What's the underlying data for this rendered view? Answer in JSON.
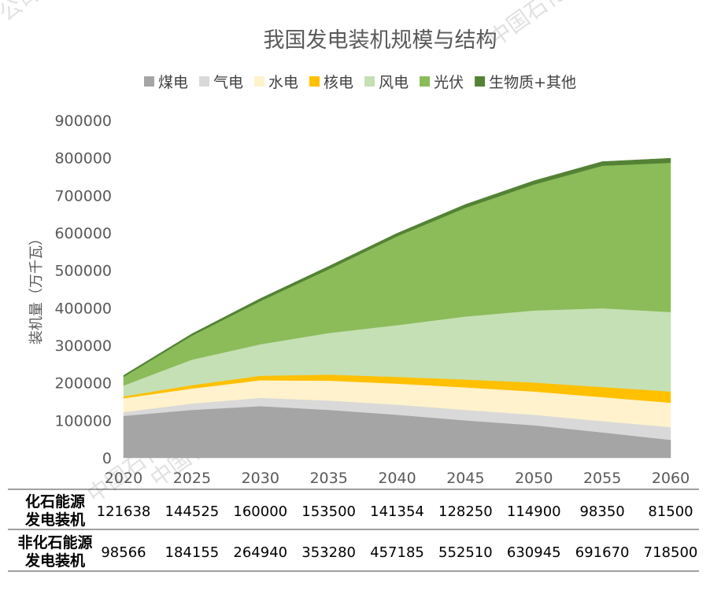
{
  "chart_data": {
    "type": "area",
    "title": "我国发电装机规模与结构",
    "ylabel": "装机量（万千瓦）",
    "xlabel": "",
    "ylim": [
      0,
      900000
    ],
    "yticks": [
      0,
      100000,
      200000,
      300000,
      400000,
      500000,
      600000,
      700000,
      800000,
      900000
    ],
    "grid": false,
    "legend_position": "top",
    "stacked": true,
    "categories": [
      "2020",
      "2025",
      "2030",
      "2035",
      "2040",
      "2045",
      "2050",
      "2055",
      "2060"
    ],
    "series": [
      {
        "name": "煤电",
        "color": "#a5a5a5",
        "values": [
          112000,
          128000,
          138000,
          128000,
          115000,
          100000,
          87000,
          68000,
          48000
        ]
      },
      {
        "name": "气电",
        "color": "#d9d9d9",
        "values": [
          10000,
          17000,
          22000,
          25000,
          27000,
          28000,
          28000,
          30000,
          34000
        ]
      },
      {
        "name": "水电",
        "color": "#fff2cc",
        "values": [
          37000,
          40000,
          47000,
          53000,
          56000,
          60000,
          62000,
          64000,
          65000
        ]
      },
      {
        "name": "核电",
        "color": "#ffc000",
        "values": [
          5000,
          9000,
          12000,
          16000,
          18000,
          21000,
          24000,
          27000,
          30000
        ]
      },
      {
        "name": "风电",
        "color": "#c5e0b4",
        "values": [
          29000,
          68000,
          84000,
          111000,
          138000,
          168000,
          192000,
          210000,
          212000
        ]
      },
      {
        "name": "光伏",
        "color": "#8cbb5a",
        "values": [
          23000,
          64000,
          115000,
          170000,
          237000,
          290000,
          336000,
          380000,
          398000
        ]
      },
      {
        "name": "生物质+其他",
        "color": "#548235",
        "values": [
          4000,
          5000,
          7000,
          8000,
          8000,
          9000,
          10000,
          11000,
          12000
        ]
      }
    ],
    "table": {
      "rows": [
        {
          "label": [
            "化石能源",
            "发电装机"
          ],
          "values": [
            "121638",
            "144525",
            "160000",
            "153500",
            "141354",
            "128250",
            "114900",
            "98350",
            "81500"
          ]
        },
        {
          "label": [
            "非化石能源",
            "发电装机"
          ],
          "values": [
            "98566",
            "184155",
            "264940",
            "353280",
            "457185",
            "552510",
            "630945",
            "691670",
            "718500"
          ]
        }
      ]
    }
  },
  "watermarks": [
    "中国石化集团经济技术研究院有限公司",
    "中国石化咨询有限责任公司",
    "中国石化",
    "公司"
  ]
}
